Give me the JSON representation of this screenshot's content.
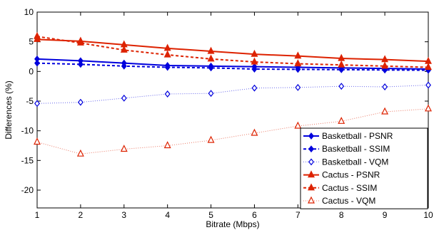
{
  "chart_data": {
    "type": "line",
    "xlabel": "Bitrate (Mbps)",
    "ylabel": "Differences (%)",
    "xlim": [
      1,
      10
    ],
    "ylim": [
      -23,
      10
    ],
    "xticks": [
      "1",
      "2",
      "3",
      "4",
      "5",
      "6",
      "7",
      "8",
      "9",
      "10"
    ],
    "yticks": [
      "10",
      "5",
      "0",
      "-5",
      "-10",
      "-15",
      "-20"
    ],
    "grid": false,
    "legend_position": "bottom-right",
    "x": [
      1,
      2,
      3,
      4,
      5,
      6,
      7,
      8,
      9,
      10
    ],
    "series": [
      {
        "name": "Basketball - PSNR",
        "color": "#0000dd",
        "marker": "diamond-filled",
        "style": "solid-thick",
        "values": [
          2.1,
          1.8,
          1.4,
          1.0,
          0.9,
          0.8,
          0.7,
          0.6,
          0.5,
          0.4
        ]
      },
      {
        "name": "Basketball - SSIM",
        "color": "#0000dd",
        "marker": "diamond-filled",
        "style": "dashed-thick",
        "values": [
          1.4,
          1.2,
          0.9,
          0.7,
          0.6,
          0.4,
          0.35,
          0.3,
          0.25,
          0.2
        ]
      },
      {
        "name": "Basketball - VQM",
        "color": "#0000dd",
        "marker": "diamond-open",
        "style": "dotted-thin",
        "values": [
          -5.4,
          -5.2,
          -4.5,
          -3.8,
          -3.7,
          -2.8,
          -2.7,
          -2.5,
          -2.6,
          -2.3
        ]
      },
      {
        "name": "Cactus - PSNR",
        "color": "#dd2200",
        "marker": "triangle-filled",
        "style": "solid-thick",
        "values": [
          5.4,
          5.1,
          4.5,
          3.9,
          3.4,
          2.9,
          2.6,
          2.2,
          2.0,
          1.7
        ]
      },
      {
        "name": "Cactus - SSIM",
        "color": "#dd2200",
        "marker": "triangle-filled",
        "style": "dashed-thick",
        "values": [
          5.9,
          4.8,
          3.6,
          2.8,
          2.1,
          1.6,
          1.3,
          1.1,
          0.9,
          0.7
        ]
      },
      {
        "name": "Cactus - VQM",
        "color": "#dd2200",
        "marker": "triangle-open",
        "style": "dotted-thin",
        "values": [
          -11.9,
          -13.9,
          -13.1,
          -12.5,
          -11.6,
          -10.4,
          -9.2,
          -8.4,
          -6.8,
          -6.3
        ]
      }
    ]
  }
}
